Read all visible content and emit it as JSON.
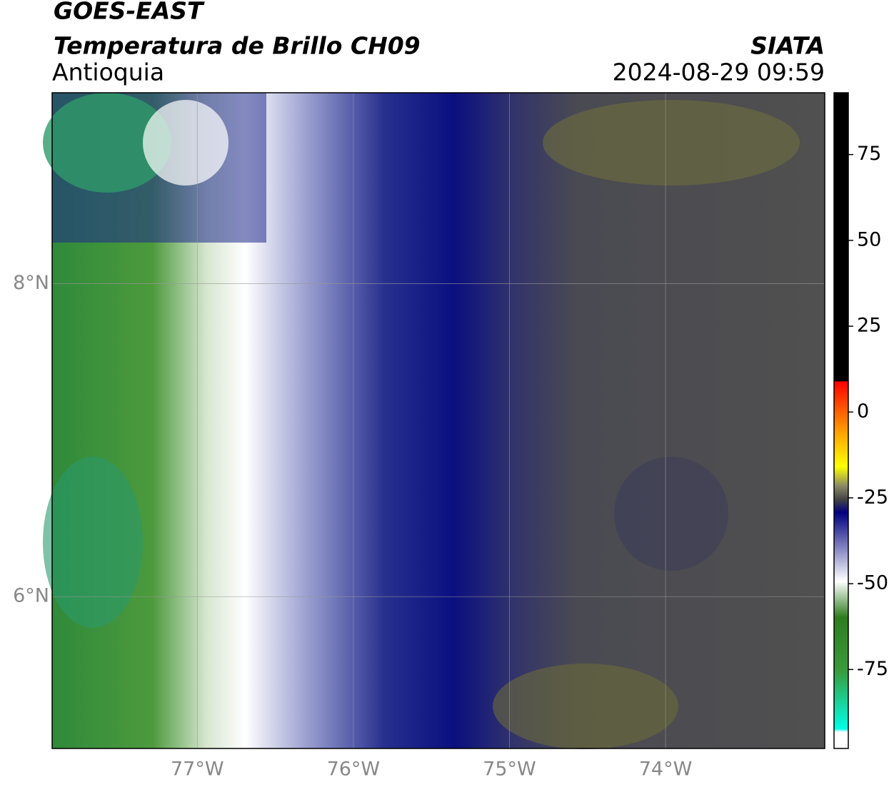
{
  "header": {
    "title": "GOES-EAST",
    "subtitle": "Temperatura de Brillo CH09",
    "region": "Antioquia",
    "source": "SIATA",
    "datetime": "2024-08-29 09:59"
  },
  "map": {
    "xlim": [
      -77.93,
      -72.98
    ],
    "ylim": [
      5.03,
      9.22
    ],
    "xticks": [
      {
        "value": -77,
        "label": "77°W"
      },
      {
        "value": -76,
        "label": "76°W"
      },
      {
        "value": -75,
        "label": "75°W"
      },
      {
        "value": -74,
        "label": "74°W"
      }
    ],
    "yticks": [
      {
        "value": 8,
        "label": "8°N"
      },
      {
        "value": 6,
        "label": "6°N"
      }
    ],
    "grid": true
  },
  "colorbar": {
    "ylim": [
      -98,
      93
    ],
    "yticks": [
      75,
      50,
      25,
      0,
      -25,
      -50,
      -75
    ]
  }
}
